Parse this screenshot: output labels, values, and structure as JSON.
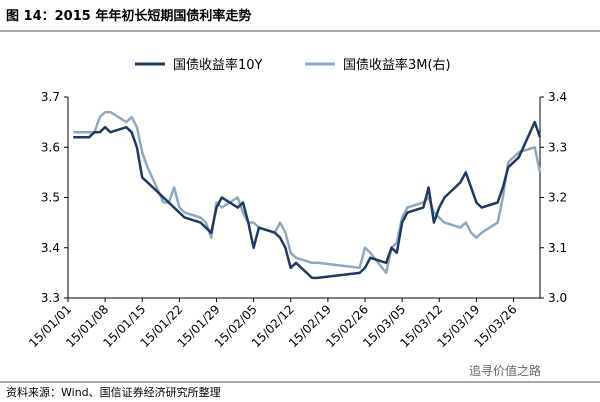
{
  "chart_data": {
    "type": "line",
    "title": "图 14：2015 年年初长短期国债利率走势",
    "source": "资料来源：Wind、国信证券经济研究所整理",
    "watermark": "追寻价值之路",
    "x": [
      "15/01/02",
      "15/01/05",
      "15/01/06",
      "15/01/07",
      "15/01/08",
      "15/01/09",
      "15/01/12",
      "15/01/13",
      "15/01/14",
      "15/01/15",
      "15/01/16",
      "15/01/19",
      "15/01/20",
      "15/01/21",
      "15/01/22",
      "15/01/23",
      "15/01/26",
      "15/01/27",
      "15/01/28",
      "15/01/29",
      "15/01/30",
      "15/02/02",
      "15/02/03",
      "15/02/04",
      "15/02/05",
      "15/02/06",
      "15/02/09",
      "15/02/10",
      "15/02/11",
      "15/02/12",
      "15/02/13",
      "15/02/16",
      "15/02/17",
      "15/02/25",
      "15/02/26",
      "15/02/27",
      "15/03/02",
      "15/03/03",
      "15/03/04",
      "15/03/05",
      "15/03/06",
      "15/03/09",
      "15/03/10",
      "15/03/11",
      "15/03/12",
      "15/03/13",
      "15/03/16",
      "15/03/17",
      "15/03/18",
      "15/03/19",
      "15/03/20",
      "15/03/23",
      "15/03/24",
      "15/03/25",
      "15/03/26",
      "15/03/27",
      "15/03/30",
      "15/03/31"
    ],
    "xlim": [
      "15/01/01",
      "15/03/31"
    ],
    "xticks": [
      "15/01/01",
      "15/01/08",
      "15/01/15",
      "15/01/22",
      "15/01/29",
      "15/02/05",
      "15/02/12",
      "15/02/19",
      "15/02/26",
      "15/03/05",
      "15/03/12",
      "15/03/19",
      "15/03/26"
    ],
    "series": [
      {
        "name": "国债收益率10Y",
        "color": "#1f3864",
        "axis": "y",
        "values": [
          3.62,
          3.62,
          3.63,
          3.63,
          3.64,
          3.63,
          3.64,
          3.63,
          3.6,
          3.54,
          3.53,
          3.5,
          3.49,
          3.48,
          3.47,
          3.46,
          3.45,
          3.44,
          3.43,
          3.48,
          3.5,
          3.48,
          3.49,
          3.45,
          3.4,
          3.44,
          3.43,
          3.42,
          3.4,
          3.36,
          3.37,
          3.34,
          3.34,
          3.35,
          3.36,
          3.38,
          3.37,
          3.4,
          3.39,
          3.45,
          3.47,
          3.48,
          3.52,
          3.45,
          3.48,
          3.5,
          3.53,
          3.55,
          3.52,
          3.49,
          3.48,
          3.49,
          3.52,
          3.56,
          3.57,
          3.58,
          3.65,
          3.62
        ]
      },
      {
        "name": "国债收益率3M(右)",
        "color": "#8fa8c0",
        "axis": "y2",
        "values": [
          3.33,
          3.33,
          3.33,
          3.36,
          3.37,
          3.37,
          3.35,
          3.36,
          3.34,
          3.29,
          3.26,
          3.19,
          3.19,
          3.22,
          3.18,
          3.17,
          3.16,
          3.15,
          3.12,
          3.19,
          3.18,
          3.2,
          3.17,
          3.15,
          3.15,
          3.14,
          3.13,
          3.15,
          3.13,
          3.09,
          3.08,
          3.07,
          3.07,
          3.06,
          3.1,
          3.09,
          3.05,
          3.1,
          3.11,
          3.16,
          3.18,
          3.19,
          3.2,
          3.17,
          3.16,
          3.15,
          3.14,
          3.15,
          3.13,
          3.12,
          3.13,
          3.15,
          3.2,
          3.27,
          3.28,
          3.29,
          3.3,
          3.25
        ]
      }
    ],
    "ylim": [
      3.3,
      3.7
    ],
    "yticks": [
      3.3,
      3.4,
      3.5,
      3.6,
      3.7
    ],
    "y2lim": [
      3.0,
      3.4
    ],
    "y2ticks": [
      {
        "value": 3,
        "label": "3.0"
      },
      3.1,
      3.2,
      3.3,
      3.4
    ],
    "legend": "top"
  }
}
